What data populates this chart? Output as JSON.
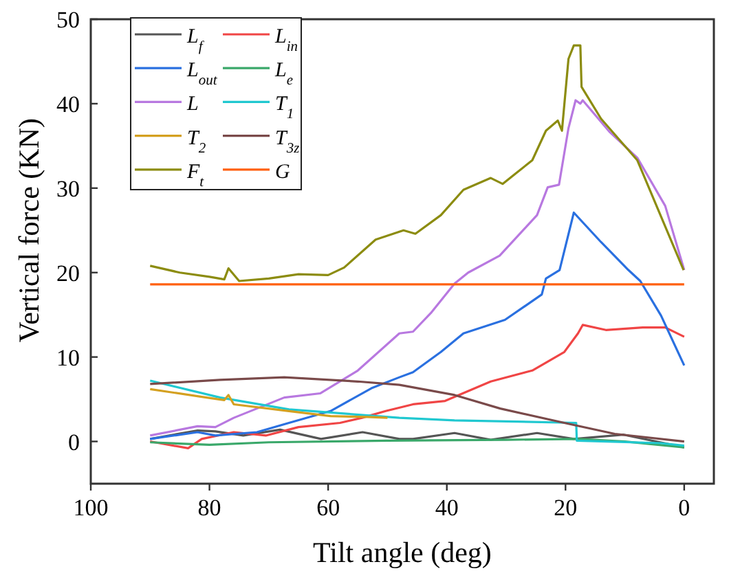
{
  "chart_data": {
    "type": "line",
    "xlabel": "Tilt angle (deg)",
    "ylabel": "Vertical force (KN)",
    "xlim": [
      100,
      -5
    ],
    "xticks": [
      100,
      80,
      60,
      40,
      20,
      0
    ],
    "ylim": [
      -5,
      50
    ],
    "yticks": [
      0,
      10,
      20,
      30,
      40,
      50
    ],
    "legend": "top left",
    "grid": false,
    "line_style": "solid",
    "marker": "none",
    "series": [
      {
        "name": "L$_{f}$",
        "color": "#555555",
        "x": [
          90,
          82,
          79,
          74.3,
          68.1,
          61.2,
          54.2,
          48,
          45.7,
          38.7,
          32.6,
          24.8,
          18.6,
          10.2,
          0
        ],
        "values": [
          0.3,
          1.3,
          1.2,
          0.7,
          1.4,
          0.3,
          1.1,
          0.3,
          0.3,
          1.0,
          0.2,
          1.0,
          0.3,
          0.8,
          -0.7
        ]
      },
      {
        "name": "L$_{in}$",
        "color": "#f04545",
        "x": [
          90,
          83.6,
          81.3,
          75.9,
          70.5,
          65,
          58,
          54.3,
          50.3,
          45.7,
          40.3,
          32.6,
          25.6,
          20.2,
          17.9,
          17.1,
          13.2,
          7,
          3.2,
          0
        ],
        "values": [
          0,
          -0.8,
          0.3,
          1.1,
          0.7,
          1.7,
          2.2,
          2.8,
          3.6,
          4.4,
          4.8,
          7.1,
          8.4,
          10.6,
          12.8,
          13.8,
          13.2,
          13.5,
          13.5,
          12.4
        ]
      },
      {
        "name": "L$_{out}$",
        "color": "#2a70e0",
        "x": [
          90,
          82,
          79,
          72,
          66.6,
          59.6,
          52.7,
          48,
          45.7,
          41,
          37.2,
          30.2,
          24,
          23.3,
          21,
          18.6,
          14,
          9.4,
          7.4,
          3.9,
          0
        ],
        "values": [
          0.3,
          1.1,
          0.7,
          1.1,
          2.2,
          3.6,
          6.3,
          7.6,
          8.2,
          10.6,
          12.8,
          14.4,
          17.4,
          19.3,
          20.3,
          27.1,
          23.6,
          20.3,
          19,
          14.9,
          9
        ]
      },
      {
        "name": "L$_{e}$",
        "color": "#3aa86a",
        "x": [
          90,
          80,
          70,
          50,
          30,
          18,
          10,
          0
        ],
        "values": [
          -0.1,
          -0.4,
          -0.1,
          0.1,
          0.2,
          0.3,
          0,
          -0.7
        ]
      },
      {
        "name": "L",
        "color": "#b878e0",
        "x": [
          90,
          82,
          79,
          75.9,
          67.4,
          61.3,
          55,
          48,
          45.7,
          42.7,
          38.7,
          36.4,
          31.1,
          24.8,
          23,
          21.1,
          19.5,
          18.3,
          17.5,
          17.1,
          12.5,
          7.9,
          3.2,
          0
        ],
        "values": [
          0.7,
          1.8,
          1.7,
          2.8,
          5.2,
          5.7,
          8.4,
          12.8,
          13,
          15.2,
          18.7,
          20,
          22,
          26.8,
          30.1,
          30.4,
          37.1,
          40.4,
          40,
          40.4,
          36.6,
          33.6,
          27.9,
          20.3
        ]
      },
      {
        "name": "T$_{1}$",
        "color": "#20c8d0",
        "x": [
          90,
          78.2,
          66.6,
          48,
          38.7,
          18.2,
          18.1,
          3.9,
          0
        ],
        "values": [
          7.2,
          5.2,
          3.8,
          2.8,
          2.5,
          2.2,
          0.1,
          -0.2,
          -0.5
        ]
      },
      {
        "name": "T$_{2}$",
        "color": "#d4a020",
        "x": [
          90,
          80.5,
          77.5,
          76.8,
          75.9,
          66.6,
          59.6,
          53.4,
          50
        ],
        "values": [
          6.2,
          5.2,
          4.9,
          5.5,
          4.4,
          3.6,
          3.0,
          2.9,
          2.8
        ]
      },
      {
        "name": "T$_{3z}$",
        "color": "#7a4a4a",
        "x": [
          90,
          78.2,
          67.4,
          55,
          48,
          38.7,
          31,
          20.2,
          11.7,
          0
        ],
        "values": [
          6.8,
          7.3,
          7.6,
          7.1,
          6.7,
          5.5,
          3.9,
          2.2,
          0.9,
          0
        ]
      },
      {
        "name": "F$_{t}$",
        "color": "#8c8c10",
        "x": [
          90,
          85,
          80,
          77.5,
          76.8,
          75,
          70,
          65,
          60,
          57.3,
          52,
          47.3,
          45.3,
          41,
          37.2,
          32.6,
          30.6,
          25.6,
          23.3,
          21.3,
          20.6,
          19.5,
          18.6,
          17.5,
          17.3,
          14,
          7.9,
          0.1
        ],
        "values": [
          20.8,
          20,
          19.5,
          19.2,
          20.5,
          19,
          19.3,
          19.8,
          19.7,
          20.6,
          23.9,
          25,
          24.6,
          26.8,
          29.8,
          31.2,
          30.5,
          33.3,
          36.8,
          38,
          36.8,
          45.3,
          46.9,
          46.9,
          42,
          38.2,
          33.3,
          20.3
        ]
      },
      {
        "name": "G",
        "color": "#ff6010",
        "x": [
          90,
          0
        ],
        "values": [
          18.6,
          18.6
        ]
      }
    ]
  }
}
